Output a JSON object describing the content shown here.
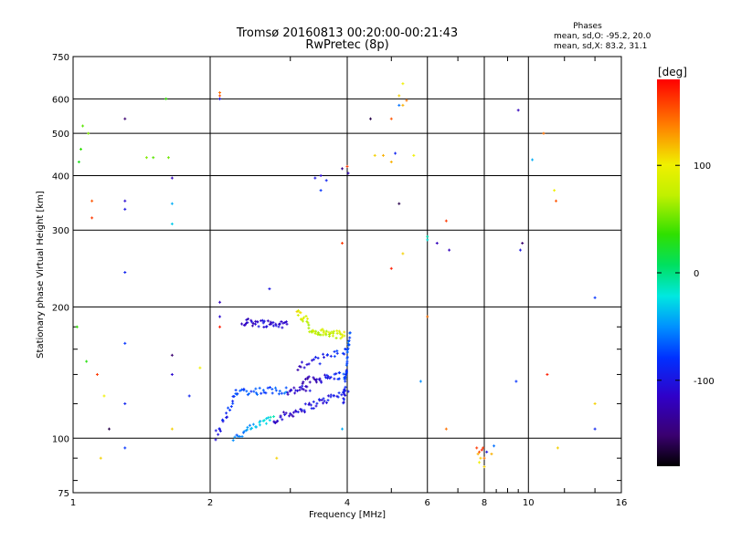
{
  "header": {
    "title_line1": "Tromsø 20160813 00:20:00-00:21:43",
    "title_line2": "RwPretec (8p)"
  },
  "phases_box": {
    "heading": "Phases",
    "line_o": "mean, sd,O: -95.2, 20.0",
    "line_x": "mean, sd,X:  83.2, 31.1"
  },
  "colorbar": {
    "label": "[deg]",
    "ticks": [
      {
        "value": 100,
        "label": "100"
      },
      {
        "value": 0,
        "label": "0"
      },
      {
        "value": -100,
        "label": "-100"
      }
    ],
    "range": [
      -180,
      180
    ]
  },
  "chart_data": {
    "type": "scatter",
    "title": "Tromsø 20160813 00:20:00-00:21:43",
    "subtitle": "RwPretec (8p)",
    "xlabel": "Frequency [MHz]",
    "ylabel": "Stationary phase Virtual Height [km]",
    "xscale": "log",
    "yscale": "log",
    "xlim": [
      1,
      16
    ],
    "ylim": [
      75,
      750
    ],
    "grid": true,
    "x_ticks": [
      {
        "value": 1,
        "label": "1"
      },
      {
        "value": 2,
        "label": "2"
      },
      {
        "value": 4,
        "label": "4"
      },
      {
        "value": 6,
        "label": "6"
      },
      {
        "value": 8,
        "label": "8"
      },
      {
        "value": 10,
        "label": "10"
      },
      {
        "value": 16,
        "label": "16"
      }
    ],
    "x_minor_ticks": [
      3,
      5,
      7,
      9,
      12,
      14
    ],
    "y_ticks": [
      {
        "value": 75,
        "label": "75"
      },
      {
        "value": 100,
        "label": "100"
      },
      {
        "value": 200,
        "label": "200"
      },
      {
        "value": 300,
        "label": "300"
      },
      {
        "value": 400,
        "label": "400"
      },
      {
        "value": 500,
        "label": "500"
      },
      {
        "value": 600,
        "label": "600"
      },
      {
        "value": 750,
        "label": "750"
      }
    ],
    "y_minor_ticks": [
      80,
      90,
      120,
      140,
      160,
      180
    ],
    "series": [
      {
        "points": [
          [
            1.02,
            180,
            40
          ],
          [
            1.03,
            430,
            30
          ],
          [
            1.04,
            460,
            40
          ],
          [
            1.05,
            520,
            50
          ],
          [
            1.07,
            150,
            35
          ],
          [
            1.08,
            500,
            60
          ],
          [
            1.1,
            350,
            150
          ],
          [
            1.1,
            320,
            160
          ],
          [
            1.13,
            140,
            160
          ],
          [
            1.15,
            90,
            110
          ],
          [
            1.17,
            125,
            100
          ],
          [
            1.2,
            105,
            -160
          ],
          [
            1.3,
            540,
            -150
          ],
          [
            1.3,
            350,
            -110
          ],
          [
            1.3,
            335,
            -100
          ],
          [
            1.3,
            240,
            -90
          ],
          [
            1.3,
            165,
            -80
          ],
          [
            1.3,
            120,
            -90
          ],
          [
            1.3,
            95,
            -80
          ],
          [
            1.45,
            440,
            60
          ],
          [
            1.5,
            440,
            50
          ],
          [
            1.6,
            600,
            40
          ],
          [
            1.62,
            440,
            55
          ],
          [
            1.65,
            395,
            -120
          ],
          [
            1.65,
            345,
            -40
          ],
          [
            1.65,
            310,
            -30
          ],
          [
            1.65,
            155,
            -150
          ],
          [
            1.65,
            140,
            -110
          ],
          [
            1.65,
            105,
            110
          ],
          [
            1.8,
            125,
            -90
          ],
          [
            1.9,
            145,
            100
          ],
          [
            2.1,
            620,
            140
          ],
          [
            2.1,
            610,
            150
          ],
          [
            2.1,
            600,
            -100
          ],
          [
            2.1,
            205,
            -120
          ],
          [
            2.1,
            190,
            -110
          ],
          [
            2.1,
            180,
            170
          ],
          [
            2.7,
            220,
            -100
          ],
          [
            2.8,
            90,
            110
          ],
          [
            3.4,
            395,
            -100
          ],
          [
            3.5,
            400,
            -110
          ],
          [
            3.6,
            390,
            -90
          ],
          [
            3.5,
            370,
            -80
          ],
          [
            3.9,
            415,
            -140
          ],
          [
            4.0,
            420,
            160
          ],
          [
            4.02,
            405,
            -120
          ],
          [
            3.9,
            280,
            160
          ],
          [
            3.9,
            105,
            -40
          ],
          [
            4.5,
            540,
            -160
          ],
          [
            4.6,
            445,
            110
          ],
          [
            4.8,
            445,
            120
          ],
          [
            5.0,
            540,
            150
          ],
          [
            5.0,
            430,
            120
          ],
          [
            5.1,
            450,
            -90
          ],
          [
            5.0,
            245,
            170
          ],
          [
            5.2,
            345,
            -160
          ],
          [
            5.2,
            610,
            110
          ],
          [
            5.3,
            580,
            120
          ],
          [
            5.4,
            595,
            140
          ],
          [
            5.3,
            650,
            100
          ],
          [
            5.3,
            265,
            110
          ],
          [
            5.6,
            445,
            100
          ],
          [
            5.2,
            580,
            -60
          ],
          [
            5.8,
            135,
            -50
          ],
          [
            6.0,
            190,
            140
          ],
          [
            6.0,
            290,
            -10
          ],
          [
            6.0,
            285,
            -20
          ],
          [
            6.3,
            280,
            -120
          ],
          [
            6.6,
            315,
            160
          ],
          [
            6.6,
            105,
            140
          ],
          [
            6.7,
            270,
            -120
          ],
          [
            7.7,
            95,
            160
          ],
          [
            7.75,
            92,
            120
          ],
          [
            7.8,
            93,
            150
          ],
          [
            7.85,
            90,
            110
          ],
          [
            7.9,
            94,
            170
          ],
          [
            7.95,
            95,
            160
          ],
          [
            8.0,
            90,
            140
          ],
          [
            8.1,
            93,
            -100
          ],
          [
            8.3,
            92,
            120
          ],
          [
            8.4,
            96,
            -60
          ],
          [
            7.8,
            88,
            100
          ],
          [
            8.0,
            86,
            110
          ],
          [
            9.5,
            565,
            -120
          ],
          [
            9.6,
            270,
            -100
          ],
          [
            9.7,
            280,
            -150
          ],
          [
            9.4,
            135,
            -80
          ],
          [
            10.2,
            435,
            -40
          ],
          [
            10.8,
            500,
            140
          ],
          [
            11.0,
            140,
            170
          ],
          [
            11.4,
            370,
            100
          ],
          [
            11.5,
            350,
            150
          ],
          [
            11.6,
            95,
            110
          ],
          [
            14.0,
            210,
            -80
          ],
          [
            14.0,
            120,
            110
          ],
          [
            14.0,
            105,
            -90
          ]
        ]
      }
    ],
    "traces": [
      {
        "x0": 2.05,
        "x1": 2.3,
        "y0": 100,
        "y1": 130,
        "n": 22,
        "p0": -110,
        "p1": -70,
        "s": 0.02
      },
      {
        "x0": 2.25,
        "x1": 2.75,
        "y0": 100,
        "y1": 112,
        "n": 28,
        "p0": -60,
        "p1": -20,
        "s": 0.015
      },
      {
        "x0": 2.75,
        "x1": 4.0,
        "y0": 110,
        "y1": 128,
        "n": 55,
        "p0": -120,
        "p1": -90,
        "s": 0.015
      },
      {
        "x0": 2.3,
        "x1": 2.95,
        "y0": 128,
        "y1": 129,
        "n": 30,
        "p0": -80,
        "p1": -60,
        "s": 0.01
      },
      {
        "x0": 2.95,
        "x1": 3.3,
        "y0": 128,
        "y1": 130,
        "n": 18,
        "p0": -120,
        "p1": -110,
        "s": 0.01
      },
      {
        "x0": 3.2,
        "x1": 4.0,
        "y0": 135,
        "y1": 140,
        "n": 35,
        "p0": -130,
        "p1": -70,
        "s": 0.02
      },
      {
        "x0": 3.1,
        "x1": 4.0,
        "y0": 145,
        "y1": 160,
        "n": 25,
        "p0": -120,
        "p1": -80,
        "s": 0.025
      },
      {
        "x0": 2.35,
        "x1": 2.95,
        "y0": 185,
        "y1": 182,
        "n": 40,
        "p0": -120,
        "p1": -100,
        "s": 0.012
      },
      {
        "x0": 3.1,
        "x1": 3.3,
        "y0": 195,
        "y1": 185,
        "n": 15,
        "p0": 100,
        "p1": 80,
        "s": 0.01
      },
      {
        "x0": 3.3,
        "x1": 3.95,
        "y0": 176,
        "y1": 172,
        "n": 40,
        "p0": 70,
        "p1": 90,
        "s": 0.01
      },
      {
        "x0": 3.92,
        "x1": 4.05,
        "y0": 120,
        "y1": 175,
        "n": 35,
        "p0": -100,
        "p1": -60,
        "s": 0.005
      }
    ]
  }
}
